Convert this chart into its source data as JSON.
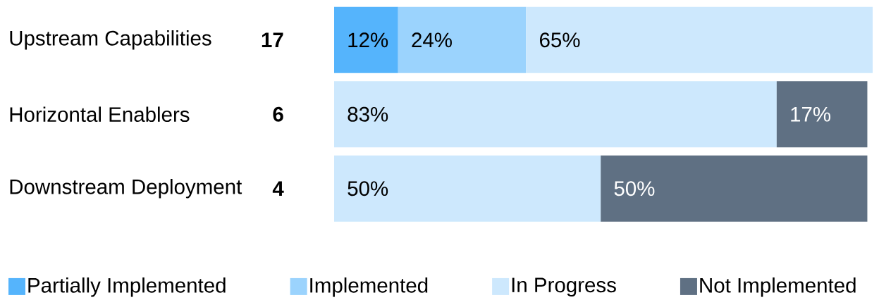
{
  "chart_data": {
    "type": "bar",
    "orientation": "horizontal",
    "stacked": true,
    "legend": "bottom",
    "categories": [
      "Upstream Capabilities",
      "Horizontal Enablers",
      "Downstream Deployment"
    ],
    "series": [
      {
        "name": "Partially Implemented",
        "color": "#55b4fc",
        "values": [
          12,
          null,
          null
        ],
        "value_labels": [
          "12%",
          null,
          null
        ]
      },
      {
        "name": "Implemented",
        "color": "#9bd3fd",
        "values": [
          24,
          null,
          null
        ],
        "value_labels": [
          "24%",
          null,
          null
        ]
      },
      {
        "name": "In Progress",
        "color": "#cde8fd",
        "values": [
          65,
          83,
          50
        ],
        "value_labels": [
          "65%",
          "83%",
          "50%"
        ]
      },
      {
        "name": "Not Implemented",
        "color": "#5f7083",
        "values": [
          null,
          17,
          50
        ],
        "value_labels": [
          null,
          "17%",
          "50%"
        ]
      }
    ],
    "annotations": [
      "17",
      "6",
      "4"
    ]
  }
}
